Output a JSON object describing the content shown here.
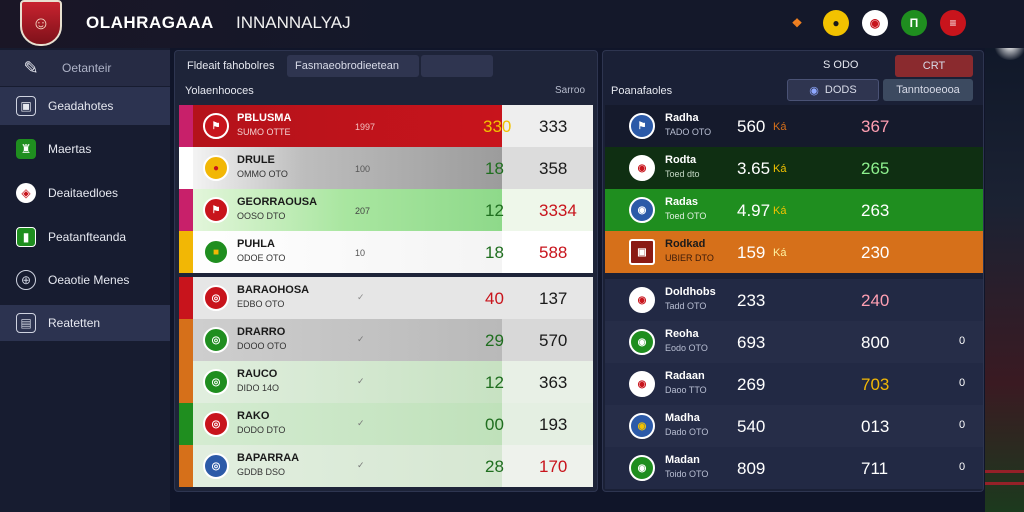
{
  "header": {
    "title": "OLAHRAGAAA",
    "subtitle": "INNANNALYAJ",
    "icons": [
      "flame-icon",
      "trophy-icon",
      "ball-icon",
      "shield-icon",
      "flag-icon"
    ]
  },
  "sidebar": {
    "search_label": "Oetanteir",
    "items": [
      {
        "label": "Geadahotes",
        "icon": "team-icon"
      },
      {
        "label": "Maertas",
        "icon": "jersey-icon"
      },
      {
        "label": "Deaitaedloes",
        "icon": "crest-icon"
      },
      {
        "label": "Peatanfteanda",
        "icon": "flag-icon"
      },
      {
        "label": "Oeaotie Menes",
        "icon": "globe-icon"
      },
      {
        "label": "Reatetten",
        "icon": "screen-icon"
      }
    ]
  },
  "left_panel": {
    "tab1": "Fldeait fahobolres",
    "tab2": "Fasmaeobrodieetean",
    "heading": "Yolaenhooces",
    "col_label": "Sarroo",
    "upper_rows": [
      {
        "name": "PBLUSMA",
        "sub": "SUMO OTTE",
        "mid": "1997",
        "v1": "330",
        "v2": "333"
      },
      {
        "name": "DRULE",
        "sub": "OMMO OTO",
        "mid": "100",
        "v1": "18",
        "v2": "358"
      },
      {
        "name": "GEORRAOUSA",
        "sub": "OOSO DTO",
        "mid": "207",
        "v1": "12",
        "v2": "3334"
      },
      {
        "name": "PUHLA",
        "sub": "ODOE OTO",
        "mid": "10",
        "v1": "18",
        "v2": "588"
      }
    ],
    "lower_rows": [
      {
        "name": "BARAOHOSA",
        "sub": "EDBO OTO",
        "v1": "40",
        "v2": "137"
      },
      {
        "name": "DRARRO",
        "sub": "DOOO OTO",
        "v1": "29",
        "v2": "570"
      },
      {
        "name": "RAUCO",
        "sub": "DIDO 14O",
        "v1": "12",
        "v2": "363"
      },
      {
        "name": "RAKO",
        "sub": "DODO DTO",
        "v1": "00",
        "v2": "193"
      },
      {
        "name": "BAPARRAA",
        "sub": "GDDB DSO",
        "v1": "28",
        "v2": "170"
      }
    ]
  },
  "right_panel": {
    "heading": "Poanafaoles",
    "top_label": "S ODO",
    "top_btn": "CRT",
    "pill1": "DODS",
    "pill2": "Tanntooeooa",
    "upper_rows": [
      {
        "name": "Radha",
        "sub": "TADO OTO",
        "v1": "560",
        "unit": "Ká",
        "v2": "367"
      },
      {
        "name": "Rodta",
        "sub": "Toed dto",
        "v1": "3.65",
        "unit": "Ká",
        "v2": "265"
      },
      {
        "name": "Radas",
        "sub": "Toed OTO",
        "v1": "4.97",
        "unit": "Ká",
        "v2": "263"
      },
      {
        "name": "Rodkad",
        "sub": "UBIER DTO",
        "v1": "159",
        "unit": "Ká",
        "v2": "230"
      }
    ],
    "lower_rows": [
      {
        "name": "Doldhobs",
        "sub": "Tadd OTO",
        "v1": "233",
        "v2": "240",
        "end": ""
      },
      {
        "name": "Reoha",
        "sub": "Eodo OTO",
        "v1": "693",
        "v2": "800",
        "end": "0"
      },
      {
        "name": "Radaan",
        "sub": "Daoo TTO",
        "v1": "269",
        "v2": "703",
        "end": "0"
      },
      {
        "name": "Madha",
        "sub": "Dado OTO",
        "v1": "540",
        "v2": "013",
        "end": "0"
      },
      {
        "name": "Madan",
        "sub": "Toido OTO",
        "v1": "809",
        "v2": "711",
        "end": "0"
      }
    ]
  },
  "colors": {
    "red": "#c8141c",
    "green": "#1f8e1f",
    "orange": "#d6701a",
    "yellow": "#f2b705"
  }
}
